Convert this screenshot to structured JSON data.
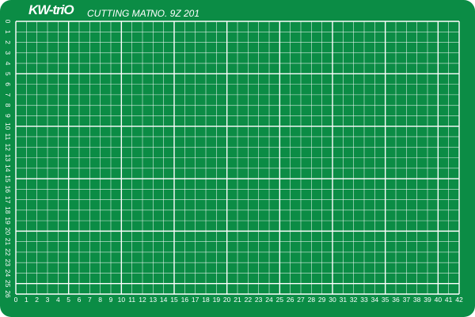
{
  "brand": "KW-triO",
  "product": "CUTTING MAT",
  "model": "NO. 9Z 201",
  "colors": {
    "mat": "#0b8c45",
    "lines": "#ffffff"
  },
  "grid": {
    "columns": 42,
    "rows": 26,
    "major_every": 5
  },
  "x_labels": [
    "0",
    "1",
    "2",
    "3",
    "4",
    "5",
    "6",
    "7",
    "8",
    "9",
    "10",
    "11",
    "12",
    "13",
    "14",
    "15",
    "16",
    "17",
    "18",
    "19",
    "20",
    "21",
    "22",
    "23",
    "24",
    "25",
    "26",
    "27",
    "28",
    "29",
    "30",
    "31",
    "32",
    "33",
    "34",
    "35",
    "36",
    "37",
    "38",
    "39",
    "40",
    "41",
    "42"
  ],
  "y_labels": [
    "0",
    "1",
    "2",
    "3",
    "4",
    "5",
    "6",
    "7",
    "8",
    "9",
    "10",
    "11",
    "12",
    "13",
    "14",
    "15",
    "16",
    "17",
    "18",
    "19",
    "20",
    "21",
    "22",
    "23",
    "24",
    "25",
    "26"
  ]
}
